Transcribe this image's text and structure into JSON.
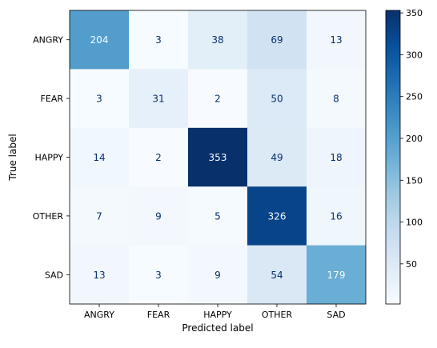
{
  "chart_data": {
    "type": "heatmap",
    "title": "",
    "xlabel": "Predicted label",
    "ylabel": "True label",
    "x_categories": [
      "ANGRY",
      "FEAR",
      "HAPPY",
      "OTHER",
      "SAD"
    ],
    "y_categories": [
      "ANGRY",
      "FEAR",
      "HAPPY",
      "OTHER",
      "SAD"
    ],
    "values": [
      [
        204,
        3,
        38,
        69,
        13
      ],
      [
        3,
        31,
        2,
        50,
        8
      ],
      [
        14,
        2,
        353,
        49,
        18
      ],
      [
        7,
        9,
        5,
        326,
        16
      ],
      [
        13,
        3,
        9,
        54,
        179
      ]
    ],
    "colormap": "Blues",
    "colorbar_ticks": [
      50,
      100,
      150,
      200,
      250,
      300,
      350
    ],
    "colorbar_range": [
      2,
      353
    ],
    "colors": {
      "low": "#f7fbff",
      "high": "#08306b",
      "text_light": "#f7fbff",
      "text_dark": "#08306b"
    }
  }
}
